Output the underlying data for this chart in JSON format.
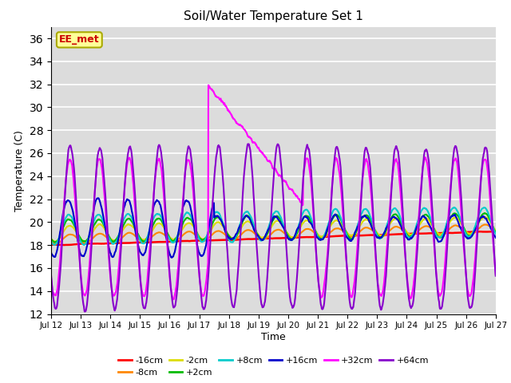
{
  "title": "Soil/Water Temperature Set 1",
  "xlabel": "Time",
  "ylabel": "Temperature (C)",
  "ylim": [
    12,
    37
  ],
  "yticks": [
    12,
    14,
    16,
    18,
    20,
    22,
    24,
    26,
    28,
    30,
    32,
    34,
    36
  ],
  "bg_color": "#dcdcdc",
  "fig_color": "#ffffff",
  "annotation_text": "EE_met",
  "annotation_color": "#cc0000",
  "annotation_bg": "#ffff99",
  "annotation_border": "#aaaa00",
  "series_order": [
    "-16cm",
    "-8cm",
    "-2cm",
    "+2cm",
    "+8cm",
    "+16cm",
    "+32cm",
    "+64cm"
  ],
  "series": {
    "-16cm": {
      "color": "#ff0000",
      "lw": 1.8
    },
    "-8cm": {
      "color": "#ff8800",
      "lw": 1.5
    },
    "-2cm": {
      "color": "#dddd00",
      "lw": 1.5
    },
    "+2cm": {
      "color": "#00bb00",
      "lw": 1.5
    },
    "+8cm": {
      "color": "#00cccc",
      "lw": 1.5
    },
    "+16cm": {
      "color": "#0000cc",
      "lw": 1.5
    },
    "+32cm": {
      "color": "#ff00ff",
      "lw": 1.5
    },
    "+64cm": {
      "color": "#8800cc",
      "lw": 1.5
    }
  },
  "x_labels": [
    "Jul 12",
    "Jul 13",
    "Jul 14",
    "Jul 15",
    "Jul 16",
    "Jul 17",
    "Jul 18",
    "Jul 19",
    "Jul 20",
    "Jul 21",
    "Jul 22",
    "Jul 23",
    "Jul 24",
    "Jul 25",
    "Jul 26",
    "Jul 27"
  ],
  "n_points": 1440
}
